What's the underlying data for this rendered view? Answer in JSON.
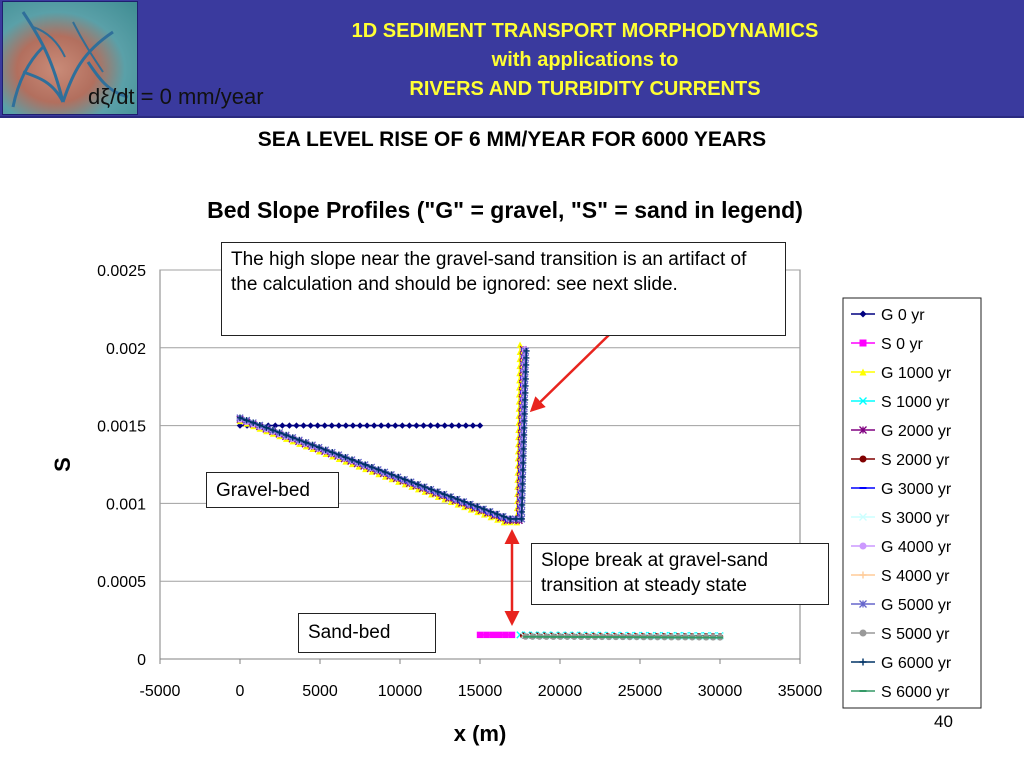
{
  "header": {
    "line1": "1D SEDIMENT TRANSPORT MORPHODYNAMICS",
    "line2": "with applications to",
    "line3": "RIVERS AND TURBIDITY CURRENTS",
    "logo_icon": "delta-satellite-image-icon"
  },
  "dxi_label": "dξ/dt = 0 mm/year",
  "slide_subtitle": "SEA LEVEL RISE OF 6 MM/YEAR FOR 6000 YEARS",
  "annotations": {
    "artifact": "The high slope near the gravel-sand transition is an artifact of the calculation and should  be ignored: see next slide.",
    "gravel_bed": "Gravel-bed",
    "sand_bed": "Sand-bed",
    "slope_break": "Slope break at gravel-sand transition at steady state"
  },
  "page_number": "40",
  "colors": {
    "banner": "#3a3a9e",
    "banner_text": "#ffff33",
    "arrow": "#e8241e"
  },
  "chart_data": {
    "type": "line",
    "title": "Bed Slope Profiles (\"G\" = gravel, \"S\" = sand in legend)",
    "xlabel": "x (m)",
    "ylabel": "S",
    "xlim": [
      -5000,
      35000
    ],
    "ylim": [
      0,
      0.0025
    ],
    "x_ticks": [
      "-5000",
      "0",
      "5000",
      "10000",
      "15000",
      "20000",
      "25000",
      "30000",
      "35000"
    ],
    "y_ticks": [
      "0",
      "0.0005",
      "0.001",
      "0.0015",
      "0.002",
      "0.0025"
    ],
    "grid": "horizontal",
    "legend_position": "right",
    "series": [
      {
        "name": "G 0 yr",
        "color": "#000080",
        "marker": "diamond",
        "points": [
          [
            0,
            0.0015
          ],
          [
            15000,
            0.0015
          ]
        ]
      },
      {
        "name": "S 0 yr",
        "color": "#ff00ff",
        "marker": "square",
        "points": [
          [
            15000,
            0.000155
          ],
          [
            17000,
            0.000155
          ]
        ]
      },
      {
        "name": "G 1000 yr",
        "color": "#ffff00",
        "marker": "triangle",
        "points": [
          [
            0,
            0.00153
          ],
          [
            16500,
            0.00088
          ],
          [
            17300,
            0.00088
          ],
          [
            17500,
            0.00202
          ]
        ]
      },
      {
        "name": "S 1000 yr",
        "color": "#00ffff",
        "marker": "x",
        "points": [
          [
            17500,
            0.000155
          ],
          [
            30000,
            0.00015
          ]
        ]
      },
      {
        "name": "G 2000 yr",
        "color": "#800080",
        "marker": "star",
        "points": [
          [
            0,
            0.00154
          ],
          [
            16700,
            0.00089
          ],
          [
            17450,
            0.00089
          ],
          [
            17700,
            0.00199
          ]
        ]
      },
      {
        "name": "S 2000 yr",
        "color": "#800000",
        "marker": "circle",
        "points": [
          [
            17700,
            0.00015
          ],
          [
            30000,
            0.000145
          ]
        ]
      },
      {
        "name": "G 3000 yr",
        "color": "#0000ff",
        "marker": "dash",
        "points": [
          [
            0,
            0.00154
          ],
          [
            16750,
            0.00089
          ],
          [
            17500,
            0.00089
          ],
          [
            17750,
            0.00199
          ]
        ]
      },
      {
        "name": "S 3000 yr",
        "color": "#ccffff",
        "marker": "x",
        "points": [
          [
            17750,
            0.000148
          ],
          [
            30000,
            0.000143
          ]
        ]
      },
      {
        "name": "G 4000 yr",
        "color": "#cc99ff",
        "marker": "circle",
        "points": [
          [
            0,
            0.00154
          ],
          [
            16800,
            0.0009
          ],
          [
            17550,
            0.0009
          ],
          [
            17800,
            0.00199
          ]
        ]
      },
      {
        "name": "S 4000 yr",
        "color": "#ffcc99",
        "marker": "plus",
        "points": [
          [
            17800,
            0.000146
          ],
          [
            30000,
            0.000141
          ]
        ]
      },
      {
        "name": "G 5000 yr",
        "color": "#6666cc",
        "marker": "star",
        "points": [
          [
            0,
            0.00155
          ],
          [
            16850,
            0.0009
          ],
          [
            17600,
            0.0009
          ],
          [
            17850,
            0.00198
          ]
        ]
      },
      {
        "name": "S 5000 yr",
        "color": "#999999",
        "marker": "circle",
        "points": [
          [
            17850,
            0.000144
          ],
          [
            30000,
            0.000139
          ]
        ]
      },
      {
        "name": "G 6000 yr",
        "color": "#003366",
        "marker": "plus",
        "points": [
          [
            0,
            0.00155
          ],
          [
            16900,
            0.0009
          ],
          [
            17600,
            0.0009
          ],
          [
            17900,
            0.00198
          ]
        ]
      },
      {
        "name": "S 6000 yr",
        "color": "#339966",
        "marker": "dash",
        "points": [
          [
            17900,
            0.000143
          ],
          [
            30000,
            0.000138
          ]
        ]
      }
    ]
  }
}
